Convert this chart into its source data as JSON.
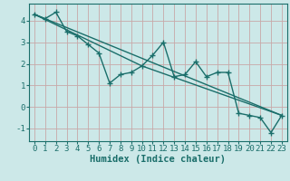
{
  "xlabel": "Humidex (Indice chaleur)",
  "bg_color": "#cce8e8",
  "grid_color": "#c8a8a8",
  "line_color": "#1a6e6a",
  "xlim": [
    -0.5,
    23.5
  ],
  "ylim": [
    -1.6,
    4.8
  ],
  "xticks": [
    0,
    1,
    2,
    3,
    4,
    5,
    6,
    7,
    8,
    9,
    10,
    11,
    12,
    13,
    14,
    15,
    16,
    17,
    18,
    19,
    20,
    21,
    22,
    23
  ],
  "yticks": [
    -1,
    0,
    1,
    2,
    3,
    4
  ],
  "series1_x": [
    0,
    1,
    2,
    3,
    4,
    5,
    6,
    7,
    8,
    9,
    10,
    11,
    12,
    13,
    14,
    15,
    16,
    17,
    18,
    19,
    20,
    21,
    22,
    23
  ],
  "series1_y": [
    4.3,
    4.1,
    4.4,
    3.5,
    3.3,
    2.9,
    2.5,
    1.1,
    1.5,
    1.6,
    1.9,
    2.4,
    3.0,
    1.4,
    1.5,
    2.1,
    1.4,
    1.6,
    1.6,
    -0.3,
    -0.4,
    -0.5,
    -1.2,
    -0.4
  ],
  "series2_x": [
    0,
    23
  ],
  "series2_y": [
    4.3,
    -0.4
  ],
  "series3_x": [
    0,
    10,
    23
  ],
  "series3_y": [
    4.3,
    1.9,
    -0.4
  ],
  "xlabel_fontsize": 7.5,
  "tick_fontsize": 6.5
}
